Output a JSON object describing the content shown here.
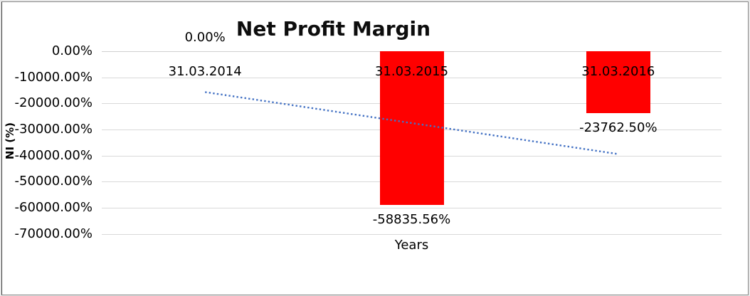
{
  "chart_data": {
    "type": "bar",
    "title": "Net Profit Margin",
    "xlabel": "Years",
    "ylabel": "NI (%)",
    "categories": [
      "31.03.2014",
      "31.03.2015",
      "31.03.2016"
    ],
    "series": [
      {
        "name": "Net Profit Margin",
        "values": [
          0,
          -58835.56,
          -23762.5
        ]
      }
    ],
    "data_labels": [
      "0.00%",
      "-58835.56%",
      "-23762.50%"
    ],
    "yticks": [
      "0.00%",
      "-10000.00%",
      "-20000.00%",
      "-30000.00%",
      "-40000.00%",
      "-50000.00%",
      "-60000.00%",
      "-70000.00%"
    ],
    "ytick_values": [
      0,
      -10000,
      -20000,
      -30000,
      -40000,
      -50000,
      -60000,
      -70000
    ],
    "ylim": [
      -70000,
      0
    ],
    "grid": true,
    "legend": "none",
    "bar_color": "#ff0000",
    "gridline_color": "#d9d9d9",
    "trendline": {
      "type": "linear",
      "style": "dotted",
      "color": "#4472c4",
      "start_value": -15651.44,
      "end_value": -39413.94
    }
  }
}
